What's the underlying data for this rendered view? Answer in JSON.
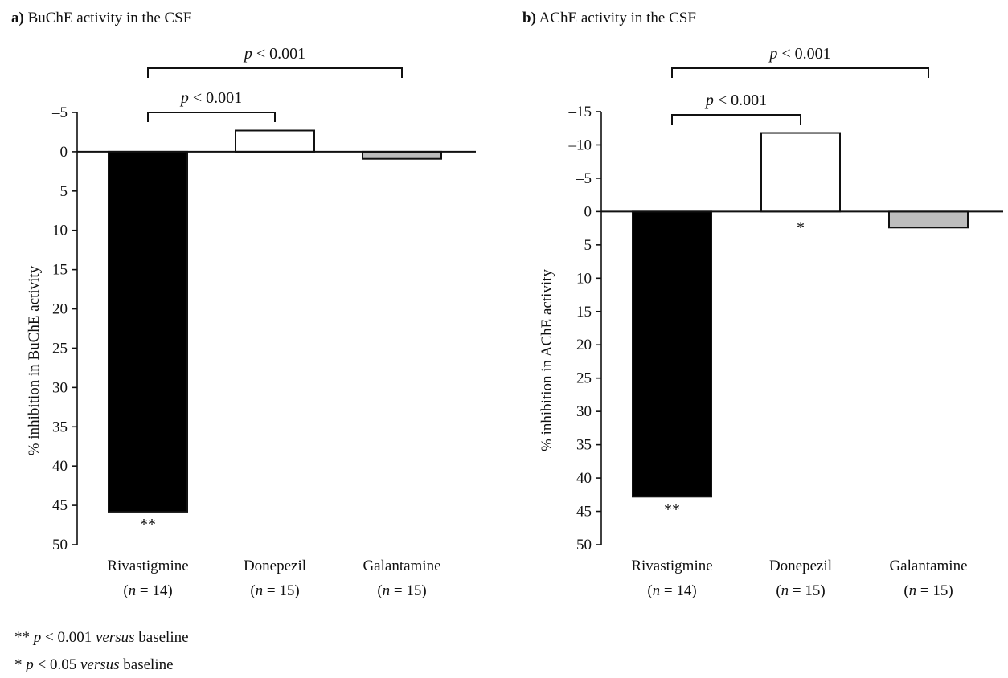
{
  "chart_data": [
    {
      "type": "bar",
      "panel": "a)",
      "title": "BuChE activity in the CSF",
      "ylabel": "% inhibition in BuChE activity",
      "ylim": [
        -5,
        50
      ],
      "y_axis_inverted": true,
      "yticks": [
        -5,
        0,
        5,
        10,
        15,
        20,
        25,
        30,
        35,
        40,
        45,
        50
      ],
      "categories": [
        {
          "name": "Rivastigmine",
          "n": "(n = 14)"
        },
        {
          "name": "Donepezil",
          "n": "(n = 15)"
        },
        {
          "name": "Galantamine",
          "n": "(n = 15)"
        }
      ],
      "values": [
        45.8,
        -2.7,
        0.9
      ],
      "bar_colors": [
        "#000000",
        "#ffffff",
        "#bdbdbd"
      ],
      "significance": [
        "**",
        "",
        ""
      ],
      "comparisons": [
        {
          "from": 0,
          "to": 1,
          "label": "p < 0.001"
        },
        {
          "from": 0,
          "to": 2,
          "label": "p < 0.001"
        }
      ]
    },
    {
      "type": "bar",
      "panel": "b)",
      "title": "AChE activity in the CSF",
      "ylabel": "% inhibition in AChE activity",
      "ylim": [
        -15,
        50
      ],
      "y_axis_inverted": true,
      "yticks": [
        -15,
        -10,
        -5,
        0,
        5,
        10,
        15,
        20,
        25,
        30,
        35,
        40,
        45,
        50
      ],
      "categories": [
        {
          "name": "Rivastigmine",
          "n": "(n = 14)"
        },
        {
          "name": "Donepezil",
          "n": "(n = 15)"
        },
        {
          "name": "Galantamine",
          "n": "(n = 15)"
        }
      ],
      "values": [
        42.8,
        -11.8,
        2.4
      ],
      "bar_colors": [
        "#000000",
        "#ffffff",
        "#bdbdbd"
      ],
      "significance": [
        "**",
        "*",
        ""
      ],
      "comparisons": [
        {
          "from": 0,
          "to": 1,
          "label": "p < 0.001"
        },
        {
          "from": 0,
          "to": 2,
          "label": "p < 0.001"
        }
      ]
    }
  ],
  "footnotes": [
    {
      "symbol": "**",
      "p": "p",
      "rest": " < 0.001 ",
      "versus": "versus",
      "tail": " baseline"
    },
    {
      "symbol": "*",
      "p": "p",
      "rest": " < 0.05 ",
      "versus": "versus",
      "tail": " baseline"
    }
  ]
}
